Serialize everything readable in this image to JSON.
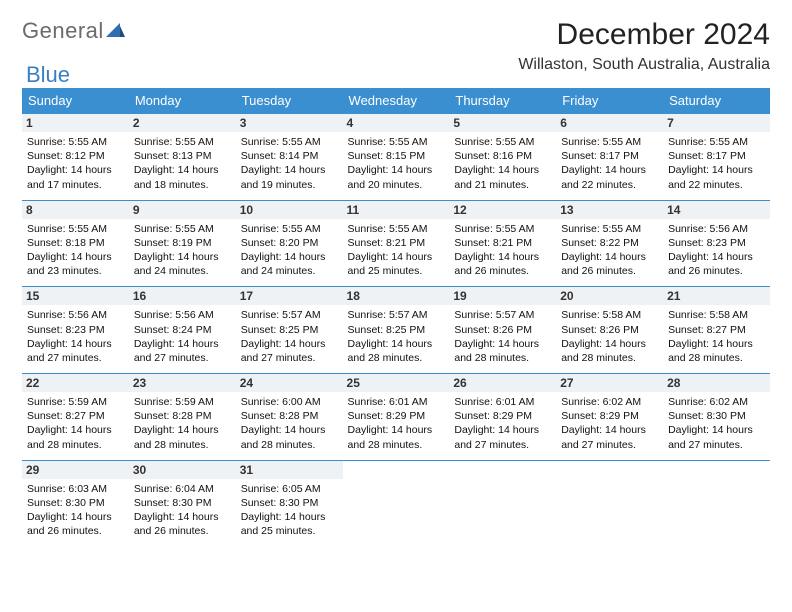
{
  "brand": {
    "part1": "General",
    "part2": "Blue"
  },
  "title": "December 2024",
  "location": "Willaston, South Australia, Australia",
  "colors": {
    "header_bg": "#3a8fd0",
    "header_text": "#ffffff",
    "daynum_bg": "#eef2f5",
    "border": "#3a8fd0",
    "logo_blue": "#3a7fc4",
    "logo_gray": "#6b6b6b"
  },
  "day_headers": [
    "Sunday",
    "Monday",
    "Tuesday",
    "Wednesday",
    "Thursday",
    "Friday",
    "Saturday"
  ],
  "weeks": [
    [
      {
        "n": "1",
        "sr": "5:55 AM",
        "ss": "8:12 PM",
        "dl": "14 hours and 17 minutes."
      },
      {
        "n": "2",
        "sr": "5:55 AM",
        "ss": "8:13 PM",
        "dl": "14 hours and 18 minutes."
      },
      {
        "n": "3",
        "sr": "5:55 AM",
        "ss": "8:14 PM",
        "dl": "14 hours and 19 minutes."
      },
      {
        "n": "4",
        "sr": "5:55 AM",
        "ss": "8:15 PM",
        "dl": "14 hours and 20 minutes."
      },
      {
        "n": "5",
        "sr": "5:55 AM",
        "ss": "8:16 PM",
        "dl": "14 hours and 21 minutes."
      },
      {
        "n": "6",
        "sr": "5:55 AM",
        "ss": "8:17 PM",
        "dl": "14 hours and 22 minutes."
      },
      {
        "n": "7",
        "sr": "5:55 AM",
        "ss": "8:17 PM",
        "dl": "14 hours and 22 minutes."
      }
    ],
    [
      {
        "n": "8",
        "sr": "5:55 AM",
        "ss": "8:18 PM",
        "dl": "14 hours and 23 minutes."
      },
      {
        "n": "9",
        "sr": "5:55 AM",
        "ss": "8:19 PM",
        "dl": "14 hours and 24 minutes."
      },
      {
        "n": "10",
        "sr": "5:55 AM",
        "ss": "8:20 PM",
        "dl": "14 hours and 24 minutes."
      },
      {
        "n": "11",
        "sr": "5:55 AM",
        "ss": "8:21 PM",
        "dl": "14 hours and 25 minutes."
      },
      {
        "n": "12",
        "sr": "5:55 AM",
        "ss": "8:21 PM",
        "dl": "14 hours and 26 minutes."
      },
      {
        "n": "13",
        "sr": "5:55 AM",
        "ss": "8:22 PM",
        "dl": "14 hours and 26 minutes."
      },
      {
        "n": "14",
        "sr": "5:56 AM",
        "ss": "8:23 PM",
        "dl": "14 hours and 26 minutes."
      }
    ],
    [
      {
        "n": "15",
        "sr": "5:56 AM",
        "ss": "8:23 PM",
        "dl": "14 hours and 27 minutes."
      },
      {
        "n": "16",
        "sr": "5:56 AM",
        "ss": "8:24 PM",
        "dl": "14 hours and 27 minutes."
      },
      {
        "n": "17",
        "sr": "5:57 AM",
        "ss": "8:25 PM",
        "dl": "14 hours and 27 minutes."
      },
      {
        "n": "18",
        "sr": "5:57 AM",
        "ss": "8:25 PM",
        "dl": "14 hours and 28 minutes."
      },
      {
        "n": "19",
        "sr": "5:57 AM",
        "ss": "8:26 PM",
        "dl": "14 hours and 28 minutes."
      },
      {
        "n": "20",
        "sr": "5:58 AM",
        "ss": "8:26 PM",
        "dl": "14 hours and 28 minutes."
      },
      {
        "n": "21",
        "sr": "5:58 AM",
        "ss": "8:27 PM",
        "dl": "14 hours and 28 minutes."
      }
    ],
    [
      {
        "n": "22",
        "sr": "5:59 AM",
        "ss": "8:27 PM",
        "dl": "14 hours and 28 minutes."
      },
      {
        "n": "23",
        "sr": "5:59 AM",
        "ss": "8:28 PM",
        "dl": "14 hours and 28 minutes."
      },
      {
        "n": "24",
        "sr": "6:00 AM",
        "ss": "8:28 PM",
        "dl": "14 hours and 28 minutes."
      },
      {
        "n": "25",
        "sr": "6:01 AM",
        "ss": "8:29 PM",
        "dl": "14 hours and 28 minutes."
      },
      {
        "n": "26",
        "sr": "6:01 AM",
        "ss": "8:29 PM",
        "dl": "14 hours and 27 minutes."
      },
      {
        "n": "27",
        "sr": "6:02 AM",
        "ss": "8:29 PM",
        "dl": "14 hours and 27 minutes."
      },
      {
        "n": "28",
        "sr": "6:02 AM",
        "ss": "8:30 PM",
        "dl": "14 hours and 27 minutes."
      }
    ],
    [
      {
        "n": "29",
        "sr": "6:03 AM",
        "ss": "8:30 PM",
        "dl": "14 hours and 26 minutes."
      },
      {
        "n": "30",
        "sr": "6:04 AM",
        "ss": "8:30 PM",
        "dl": "14 hours and 26 minutes."
      },
      {
        "n": "31",
        "sr": "6:05 AM",
        "ss": "8:30 PM",
        "dl": "14 hours and 25 minutes."
      },
      null,
      null,
      null,
      null
    ]
  ],
  "labels": {
    "sunrise": "Sunrise: ",
    "sunset": "Sunset: ",
    "daylight": "Daylight: "
  }
}
